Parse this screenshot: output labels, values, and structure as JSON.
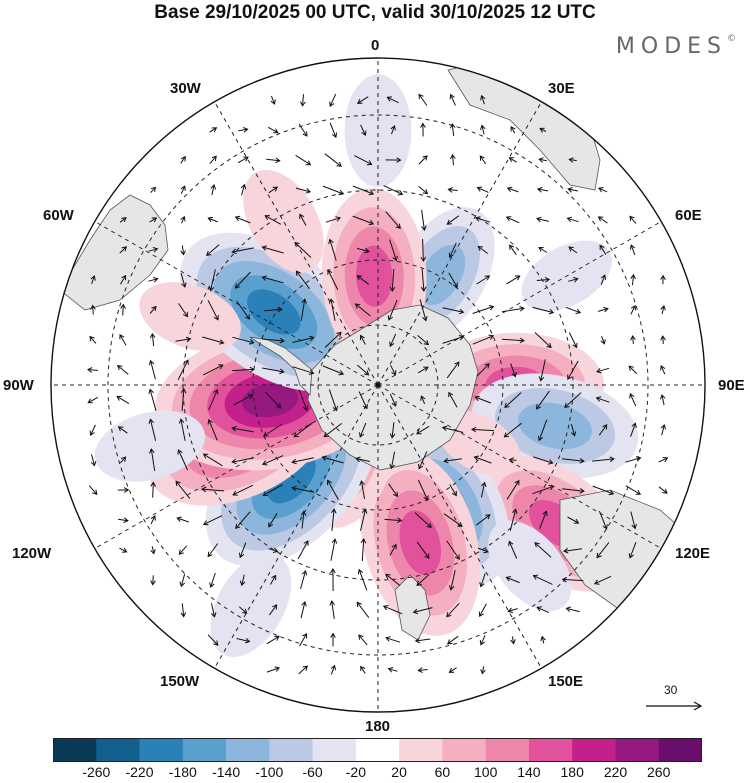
{
  "title": "Base 29/10/2025 00 UTC, valid 30/10/2025 12 UTC",
  "brand": "MODES",
  "brand_mark": "©",
  "longitude_labels": {
    "lon_0": "0",
    "lon_30e": "30E",
    "lon_60e": "60E",
    "lon_90e": "90E",
    "lon_120e": "120E",
    "lon_150e": "150E",
    "lon_180": "180",
    "lon_150w": "150W",
    "lon_120w": "120W",
    "lon_90w": "90W",
    "lon_60w": "60W",
    "lon_30w": "30W"
  },
  "reference_vector": {
    "value": "30"
  },
  "colorbar": {
    "colors": [
      "#0b3a57",
      "#135f8e",
      "#2b80b8",
      "#5aa0cf",
      "#8cb6dc",
      "#bcc9e5",
      "#e3e3f1",
      "#ffffff",
      "#f8d5db",
      "#f4afc0",
      "#ee86ab",
      "#e1519c",
      "#c4208c",
      "#95197e",
      "#6a0e6e"
    ],
    "labels": [
      "-260",
      "-220",
      "-180",
      "-140",
      "-100",
      "-60",
      "-20",
      "20",
      "60",
      "100",
      "140",
      "180",
      "220",
      "260"
    ]
  },
  "map_data": {
    "projection": "south-polar-stereographic",
    "field": "geopotential height anomaly with wind vectors",
    "lobes": [
      {
        "lon": 30,
        "lat": -55,
        "value": -110
      },
      {
        "lon": 90,
        "lat": -52,
        "value": 150
      },
      {
        "lon": 103,
        "lat": -40,
        "value": -140
      },
      {
        "lon": 128,
        "lat": -28,
        "value": 150
      },
      {
        "lon": 150,
        "lat": -52,
        "value": -150
      },
      {
        "lon": 165,
        "lat": -45,
        "value": 170
      },
      {
        "lon": -160,
        "lat": -68,
        "value": 100
      },
      {
        "lon": -137,
        "lat": -55,
        "value": -200
      },
      {
        "lon": -112,
        "lat": -48,
        "value": 170
      },
      {
        "lon": -98,
        "lat": -60,
        "value": 230
      },
      {
        "lon": -55,
        "lat": -55,
        "value": -200
      },
      {
        "lon": -2,
        "lat": -60,
        "value": 150
      },
      {
        "lon": -30,
        "lat": -38,
        "value": 60
      },
      {
        "lon": 0,
        "lat": -20,
        "value": -60
      },
      {
        "lon": 60,
        "lat": -30,
        "value": -40
      },
      {
        "lon": -70,
        "lat": -35,
        "value": 50
      },
      {
        "lon": -105,
        "lat": -25,
        "value": -60
      },
      {
        "lon": -150,
        "lat": -20,
        "value": -60
      },
      {
        "lon": 140,
        "lat": -25,
        "value": -50
      },
      {
        "lon": 120,
        "lat": -58,
        "value": 30
      }
    ]
  }
}
